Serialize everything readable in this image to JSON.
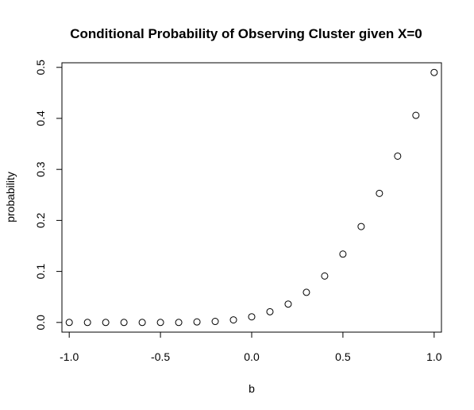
{
  "chart_data": {
    "type": "scatter",
    "title": "Conditional Probability of Observing Cluster given X=0",
    "xlabel": "b",
    "ylabel": "probability",
    "xlim": [
      -1.04,
      1.04
    ],
    "ylim": [
      -0.019,
      0.509
    ],
    "grid": false,
    "x_ticks": [
      -1.0,
      -0.5,
      0.0,
      0.5,
      1.0
    ],
    "x_tick_labels": [
      "-1.0",
      "-0.5",
      "0.0",
      "0.5",
      "1.0"
    ],
    "y_ticks": [
      0.0,
      0.1,
      0.2,
      0.3,
      0.4,
      0.5
    ],
    "y_tick_labels": [
      "0.0",
      "0.1",
      "0.2",
      "0.3",
      "0.4",
      "0.5"
    ],
    "series": [
      {
        "x": [
          -1.0,
          -0.9,
          -0.8,
          -0.7,
          -0.6,
          -0.5,
          -0.4,
          -0.3,
          -0.2,
          -0.1,
          0.0,
          0.1,
          0.2,
          0.3,
          0.4,
          0.5,
          0.6,
          0.7,
          0.8,
          0.9,
          1.0
        ],
        "values": [
          0.0,
          0.0,
          0.0,
          0.0,
          0.0,
          0.0,
          0.0,
          0.001,
          0.002,
          0.005,
          0.011,
          0.021,
          0.036,
          0.059,
          0.091,
          0.134,
          0.188,
          0.253,
          0.326,
          0.406,
          0.49
        ]
      }
    ]
  }
}
